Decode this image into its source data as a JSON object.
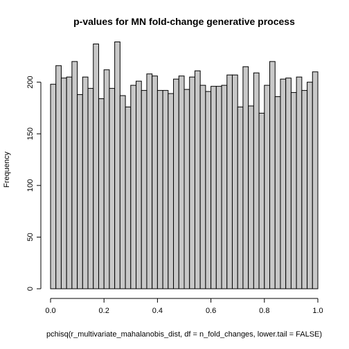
{
  "chart_data": {
    "type": "bar",
    "title": "p-values for MN fold-change generative process",
    "xlabel": "pchisq(r_multivariate_mahalanobis_dist, df = n_fold_changes, lower.tail = FALSE)",
    "ylabel": "Frequency",
    "xlim": [
      0,
      1
    ],
    "ylim": [
      0,
      240
    ],
    "bin_width": 0.02,
    "x_ticks": [
      0.0,
      0.2,
      0.4,
      0.6,
      0.8,
      1.0
    ],
    "x_tick_labels": [
      "0.0",
      "0.2",
      "0.4",
      "0.6",
      "0.8",
      "1.0"
    ],
    "y_ticks": [
      0,
      50,
      100,
      150,
      200
    ],
    "y_tick_labels": [
      "0",
      "50",
      "100",
      "150",
      "200"
    ],
    "values": [
      198,
      216,
      204,
      205,
      220,
      188,
      205,
      194,
      237,
      184,
      212,
      194,
      239,
      187,
      176,
      197,
      201,
      192,
      208,
      206,
      192,
      192,
      189,
      203,
      206,
      193,
      205,
      211,
      197,
      191,
      196,
      196,
      197,
      207,
      207,
      176,
      215,
      177,
      209,
      170,
      197,
      220,
      186,
      203,
      204,
      190,
      205,
      192,
      200,
      210
    ],
    "bar_color": "#c8c8c8",
    "grid": false,
    "legend": "none"
  }
}
